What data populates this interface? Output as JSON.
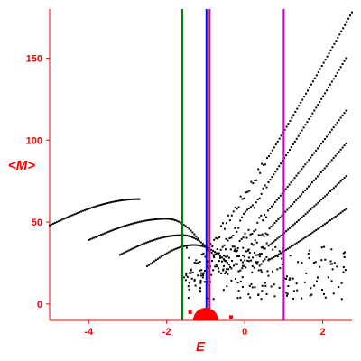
{
  "chart_data": {
    "type": "scatter",
    "title": "",
    "xlabel": "E",
    "ylabel": "<M>",
    "xlim": [
      -5.0,
      2.75
    ],
    "ylim": [
      -10,
      180
    ],
    "x_ticks": [
      -4,
      -2,
      0,
      2
    ],
    "y_ticks": [
      0,
      50,
      100,
      150
    ],
    "axis_color": "#ff0000",
    "point_color": "#000000",
    "grid": false,
    "vertical_lines": [
      {
        "x": -1.6,
        "color": "#008000"
      },
      {
        "x": -0.98,
        "color": "#0000ff"
      },
      {
        "x": -0.9,
        "color": "#cc00cc"
      },
      {
        "x": 1.0,
        "color": "#cc00cc"
      }
    ],
    "highlight_markers": [
      {
        "x": -1.0,
        "y": -10,
        "size": "large",
        "color": "#ff0000"
      },
      {
        "x": -0.35,
        "y": -8,
        "size": "small",
        "color": "#ff0000"
      },
      {
        "x": -1.4,
        "y": -5,
        "size": "small",
        "color": "#ff0000"
      }
    ],
    "series": [
      {
        "x_start": -5.0,
        "x_end": -2.7,
        "y_start": 48,
        "y_peak": 64,
        "x_peak": -2.7,
        "y_after": 45,
        "x_after": -1.5
      },
      {
        "x_start": -4.0,
        "x_end": -1.2,
        "y_start": 39,
        "y_peak": 52,
        "x_peak": -2.0
      },
      {
        "x_start": -3.2,
        "x_end": -0.8,
        "y_start": 30,
        "y_peak": 42,
        "x_peak": -1.6
      },
      {
        "x_start": -2.5,
        "x_end": -0.4,
        "y_start": 23,
        "y_peak": 36,
        "x_peak": -1.3
      },
      {
        "x_start": -1.6,
        "x_end": 2.75,
        "y_start": 15,
        "y_end": 178
      },
      {
        "x_start": -1.2,
        "x_end": 2.6,
        "y_start": 18,
        "y_end": 150
      },
      {
        "x_start": -0.9,
        "x_end": 2.6,
        "y_start": 20,
        "y_end": 118
      },
      {
        "x_start": -0.6,
        "x_end": 2.6,
        "y_start": 20,
        "y_end": 98
      },
      {
        "x_start": -0.2,
        "x_end": 2.6,
        "y_start": 22,
        "y_end": 78
      },
      {
        "x_start": 0.2,
        "x_end": 2.6,
        "y_start": 22,
        "y_end": 58
      }
    ]
  }
}
